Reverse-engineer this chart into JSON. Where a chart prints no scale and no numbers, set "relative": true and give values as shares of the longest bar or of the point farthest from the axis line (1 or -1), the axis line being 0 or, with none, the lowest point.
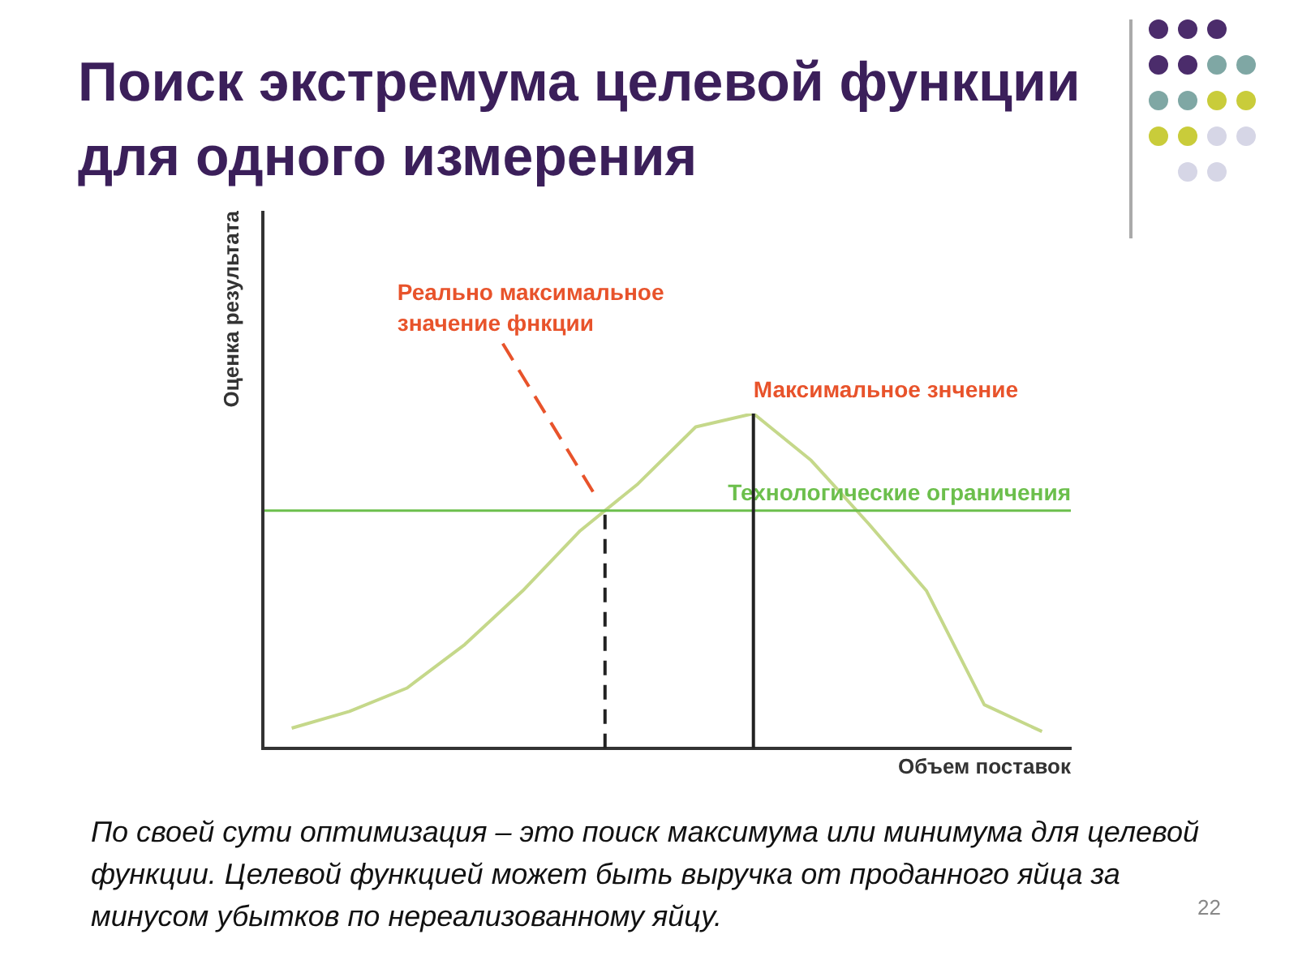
{
  "chart_data": {
    "type": "line",
    "relative": true,
    "title": "Поиск экстремума целевой функции для одного измерения",
    "xlabel": "Объем поставок",
    "ylabel": "Оценка результата",
    "tick_labels": false,
    "grid": false,
    "legend": false,
    "marker": "none",
    "categories": [
      null,
      null,
      null,
      null,
      null,
      null,
      null,
      null,
      null,
      null,
      null,
      null,
      null,
      null
    ],
    "series": [
      {
        "color": "#c5d88a",
        "values": [
          0.06,
          0.11,
          0.18,
          0.31,
          0.47,
          0.65,
          0.79,
          0.96,
          1,
          0.86,
          0.67,
          0.47,
          0.13,
          0.05
        ]
      }
    ],
    "ref_lines": [
      {
        "axis": "y",
        "value": 0.71,
        "label": "Технологические ограничения",
        "color": "#6cbf4c"
      }
    ],
    "annotations": [
      "Реально максимальное значение фнкции",
      "Максимальное знчение",
      "По своей сути оптимизация – это поиск максимума или минимума для целевой функции. Целевой функцией может быть выручка от проданного яйца за минусом убытков по нереализованному яйцу.",
      "22"
    ]
  }
}
